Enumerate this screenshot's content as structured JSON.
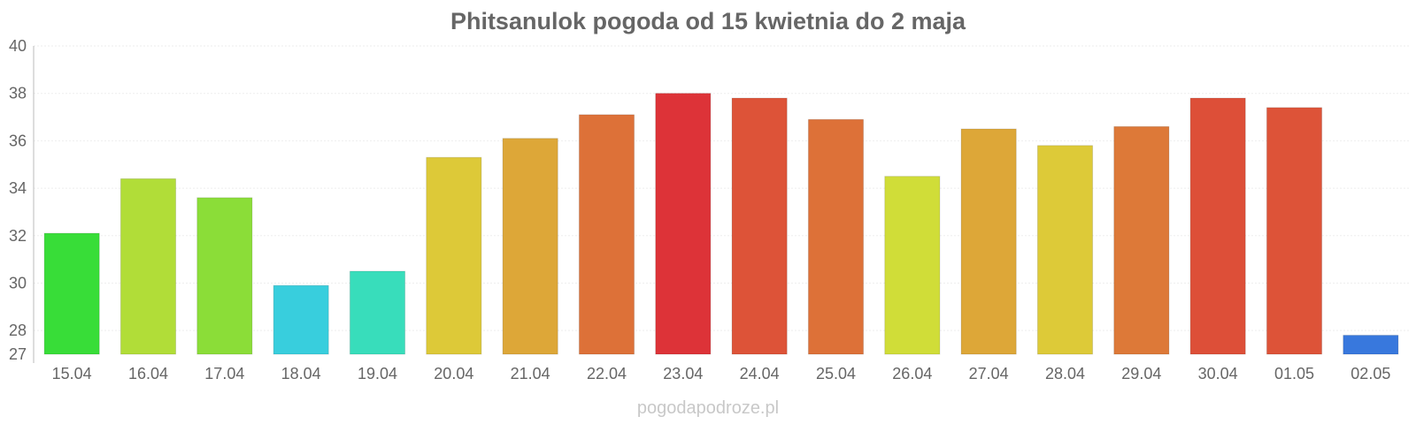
{
  "chart_data": {
    "type": "bar",
    "title": "Phitsanulok pogoda od 15 kwietnia do 2 maja",
    "xlabel": "",
    "ylabel": "",
    "ylim": [
      27,
      40
    ],
    "yticks": [
      27,
      28,
      30,
      32,
      34,
      36,
      38,
      40
    ],
    "grid": true,
    "categories": [
      "15.04",
      "16.04",
      "17.04",
      "18.04",
      "19.04",
      "20.04",
      "21.04",
      "22.04",
      "23.04",
      "24.04",
      "25.04",
      "26.04",
      "27.04",
      "28.04",
      "29.04",
      "30.04",
      "01.05",
      "02.05"
    ],
    "values": [
      32.1,
      34.4,
      33.6,
      29.9,
      30.5,
      35.3,
      36.1,
      37.1,
      38.0,
      37.8,
      36.9,
      34.5,
      36.5,
      35.8,
      36.6,
      37.8,
      37.4,
      27.8
    ],
    "colors": [
      "#38dd38",
      "#b1dd38",
      "#8bdd38",
      "#38cedd",
      "#38ddbb",
      "#ddc938",
      "#dda738",
      "#dd7138",
      "#dd3338",
      "#dd5338",
      "#dd7138",
      "#d0dd38",
      "#dda738",
      "#ddca38",
      "#dd7938",
      "#dd4f38",
      "#dd5338",
      "#3878dd"
    ]
  },
  "watermark": "pogodapodroze.pl"
}
